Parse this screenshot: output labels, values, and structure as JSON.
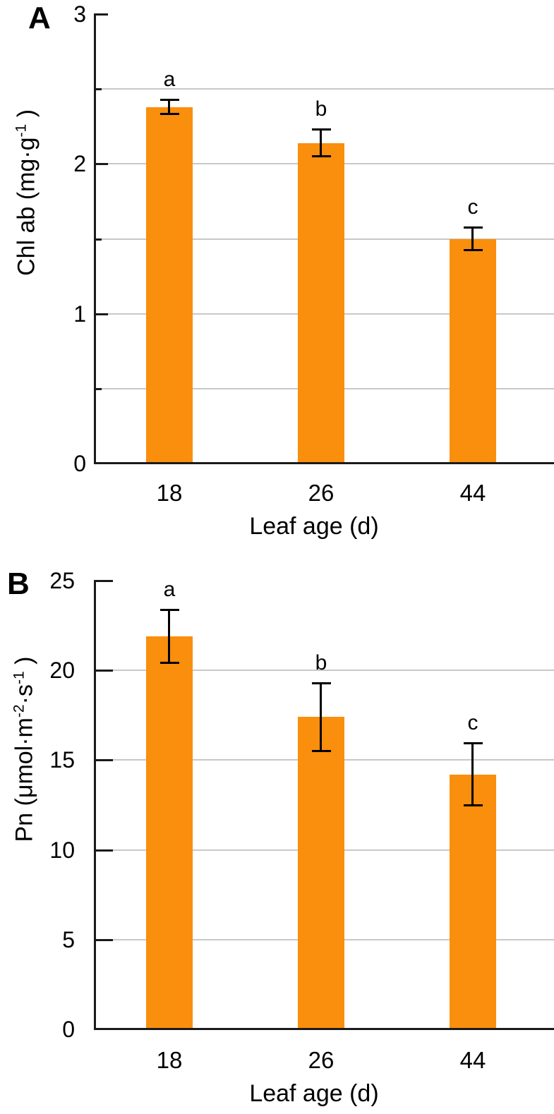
{
  "page": {
    "background": "#ffffff",
    "description": "Two-panel vertical bar chart figure"
  },
  "colors": {
    "bar": "#FA8E0D",
    "gridline": "#C8C8C8",
    "axis": "#1A1A1A",
    "error_bar": "#000000",
    "text": "#000000"
  },
  "chart_data": [
    {
      "type": "bar",
      "panel_label": "A",
      "title": "",
      "categories": [
        "18",
        "26",
        "44"
      ],
      "values": [
        2.38,
        2.14,
        1.5
      ],
      "errors": [
        0.05,
        0.09,
        0.08
      ],
      "sig_letters": [
        "a",
        "b",
        "c"
      ],
      "xlabel": "Leaf age (d)",
      "ylabel": "Chl ab (mg·g⁻¹ )",
      "ylabel_segments": [
        {
          "text": "Chl ab (mg·g"
        },
        {
          "text": "-1",
          "sup": true
        },
        {
          "text": " )"
        }
      ],
      "ylim": [
        0,
        3
      ],
      "ytick_values": [
        0,
        1,
        2,
        3
      ],
      "ytick_labels": [
        "0",
        "1",
        "2",
        "3"
      ],
      "minor_tick_values": [
        0.5,
        1.5,
        2.5
      ],
      "gridline_values": [
        0.5,
        1,
        1.5,
        2,
        2.5
      ],
      "grid": true,
      "legend": "none",
      "bar_color": "#FA8E0D"
    },
    {
      "type": "bar",
      "panel_label": "B",
      "title": "",
      "categories": [
        "18",
        "26",
        "44"
      ],
      "values": [
        21.9,
        17.4,
        14.2
      ],
      "errors": [
        1.5,
        1.9,
        1.75
      ],
      "sig_letters": [
        "a",
        "b",
        "c"
      ],
      "xlabel": "Leaf age (d)",
      "ylabel": "Pn (μmol·m⁻²·s⁻¹ )",
      "ylabel_segments": [
        {
          "text": "Pn (μmol·m"
        },
        {
          "text": "-2",
          "sup": true
        },
        {
          "text": "·s"
        },
        {
          "text": "-1",
          "sup": true
        },
        {
          "text": " )"
        }
      ],
      "ylim": [
        0,
        25
      ],
      "ytick_values": [
        0,
        5,
        10,
        15,
        20,
        25
      ],
      "ytick_labels": [
        "0",
        "5",
        "10",
        "15",
        "20",
        "25"
      ],
      "minor_tick_values": [],
      "gridline_values": [
        5,
        10,
        15,
        20
      ],
      "grid": true,
      "legend": "none",
      "bar_color": "#FA8E0D"
    }
  ]
}
